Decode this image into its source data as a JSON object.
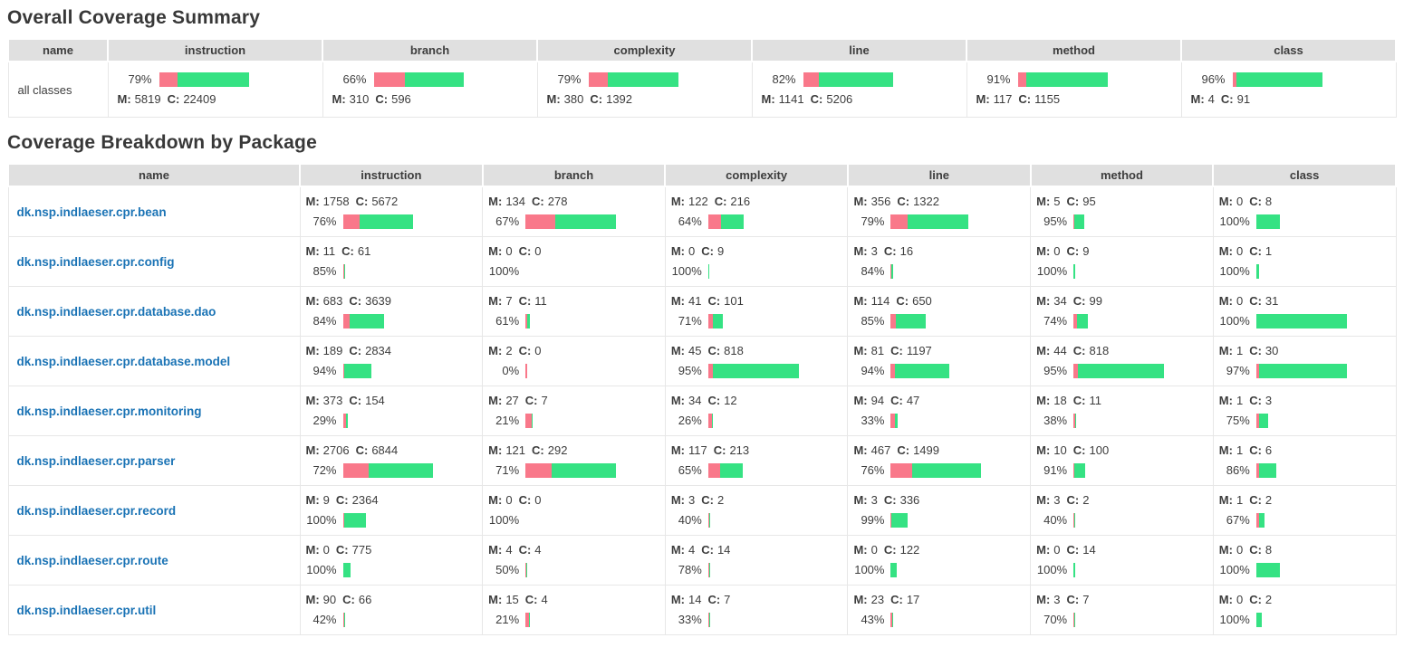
{
  "titles": {
    "summary": "Overall Coverage Summary",
    "breakdown": "Coverage Breakdown by Package"
  },
  "columns": [
    "name",
    "instruction",
    "branch",
    "complexity",
    "line",
    "method",
    "class"
  ],
  "metric_keys": [
    "instruction",
    "branch",
    "complexity",
    "line",
    "method",
    "class"
  ],
  "labels": {
    "missed": "M:",
    "covered": "C:"
  },
  "colors": {
    "missed_bar": "#f9788a",
    "covered_bar": "#35e283",
    "header_bg": "#e0e0e0",
    "link": "#1a73b5"
  },
  "summary": {
    "row_name": "all classes",
    "metrics": {
      "instruction": {
        "pct": "79%",
        "missed": 5819,
        "covered": 22409
      },
      "branch": {
        "pct": "66%",
        "missed": 310,
        "covered": 596
      },
      "complexity": {
        "pct": "79%",
        "missed": 380,
        "covered": 1392
      },
      "line": {
        "pct": "82%",
        "missed": 1141,
        "covered": 5206
      },
      "method": {
        "pct": "91%",
        "missed": 117,
        "covered": 1155
      },
      "class": {
        "pct": "96%",
        "missed": 4,
        "covered": 91
      }
    }
  },
  "packages": [
    {
      "name": "dk.nsp.indlaeser.cpr.bean",
      "metrics": {
        "instruction": {
          "pct": "76%",
          "missed": 1758,
          "covered": 5672
        },
        "branch": {
          "pct": "67%",
          "missed": 134,
          "covered": 278
        },
        "complexity": {
          "pct": "64%",
          "missed": 122,
          "covered": 216
        },
        "line": {
          "pct": "79%",
          "missed": 356,
          "covered": 1322
        },
        "method": {
          "pct": "95%",
          "missed": 5,
          "covered": 95
        },
        "class": {
          "pct": "100%",
          "missed": 0,
          "covered": 8
        }
      }
    },
    {
      "name": "dk.nsp.indlaeser.cpr.config",
      "metrics": {
        "instruction": {
          "pct": "85%",
          "missed": 11,
          "covered": 61
        },
        "branch": {
          "pct": "100%",
          "missed": 0,
          "covered": 0
        },
        "complexity": {
          "pct": "100%",
          "missed": 0,
          "covered": 9
        },
        "line": {
          "pct": "84%",
          "missed": 3,
          "covered": 16
        },
        "method": {
          "pct": "100%",
          "missed": 0,
          "covered": 9
        },
        "class": {
          "pct": "100%",
          "missed": 0,
          "covered": 1
        }
      }
    },
    {
      "name": "dk.nsp.indlaeser.cpr.database.dao",
      "metrics": {
        "instruction": {
          "pct": "84%",
          "missed": 683,
          "covered": 3639
        },
        "branch": {
          "pct": "61%",
          "missed": 7,
          "covered": 11
        },
        "complexity": {
          "pct": "71%",
          "missed": 41,
          "covered": 101
        },
        "line": {
          "pct": "85%",
          "missed": 114,
          "covered": 650
        },
        "method": {
          "pct": "74%",
          "missed": 34,
          "covered": 99
        },
        "class": {
          "pct": "100%",
          "missed": 0,
          "covered": 31
        }
      }
    },
    {
      "name": "dk.nsp.indlaeser.cpr.database.model",
      "metrics": {
        "instruction": {
          "pct": "94%",
          "missed": 189,
          "covered": 2834
        },
        "branch": {
          "pct": "0%",
          "missed": 2,
          "covered": 0
        },
        "complexity": {
          "pct": "95%",
          "missed": 45,
          "covered": 818
        },
        "line": {
          "pct": "94%",
          "missed": 81,
          "covered": 1197
        },
        "method": {
          "pct": "95%",
          "missed": 44,
          "covered": 818
        },
        "class": {
          "pct": "97%",
          "missed": 1,
          "covered": 30
        }
      }
    },
    {
      "name": "dk.nsp.indlaeser.cpr.monitoring",
      "metrics": {
        "instruction": {
          "pct": "29%",
          "missed": 373,
          "covered": 154
        },
        "branch": {
          "pct": "21%",
          "missed": 27,
          "covered": 7
        },
        "complexity": {
          "pct": "26%",
          "missed": 34,
          "covered": 12
        },
        "line": {
          "pct": "33%",
          "missed": 94,
          "covered": 47
        },
        "method": {
          "pct": "38%",
          "missed": 18,
          "covered": 11
        },
        "class": {
          "pct": "75%",
          "missed": 1,
          "covered": 3
        }
      }
    },
    {
      "name": "dk.nsp.indlaeser.cpr.parser",
      "metrics": {
        "instruction": {
          "pct": "72%",
          "missed": 2706,
          "covered": 6844
        },
        "branch": {
          "pct": "71%",
          "missed": 121,
          "covered": 292
        },
        "complexity": {
          "pct": "65%",
          "missed": 117,
          "covered": 213
        },
        "line": {
          "pct": "76%",
          "missed": 467,
          "covered": 1499
        },
        "method": {
          "pct": "91%",
          "missed": 10,
          "covered": 100
        },
        "class": {
          "pct": "86%",
          "missed": 1,
          "covered": 6
        }
      }
    },
    {
      "name": "dk.nsp.indlaeser.cpr.record",
      "metrics": {
        "instruction": {
          "pct": "100%",
          "missed": 9,
          "covered": 2364
        },
        "branch": {
          "pct": "100%",
          "missed": 0,
          "covered": 0
        },
        "complexity": {
          "pct": "40%",
          "missed": 3,
          "covered": 2
        },
        "line": {
          "pct": "99%",
          "missed": 3,
          "covered": 336
        },
        "method": {
          "pct": "40%",
          "missed": 3,
          "covered": 2
        },
        "class": {
          "pct": "67%",
          "missed": 1,
          "covered": 2
        }
      }
    },
    {
      "name": "dk.nsp.indlaeser.cpr.route",
      "metrics": {
        "instruction": {
          "pct": "100%",
          "missed": 0,
          "covered": 775
        },
        "branch": {
          "pct": "50%",
          "missed": 4,
          "covered": 4
        },
        "complexity": {
          "pct": "78%",
          "missed": 4,
          "covered": 14
        },
        "line": {
          "pct": "100%",
          "missed": 0,
          "covered": 122
        },
        "method": {
          "pct": "100%",
          "missed": 0,
          "covered": 14
        },
        "class": {
          "pct": "100%",
          "missed": 0,
          "covered": 8
        }
      }
    },
    {
      "name": "dk.nsp.indlaeser.cpr.util",
      "metrics": {
        "instruction": {
          "pct": "42%",
          "missed": 90,
          "covered": 66
        },
        "branch": {
          "pct": "21%",
          "missed": 15,
          "covered": 4
        },
        "complexity": {
          "pct": "33%",
          "missed": 14,
          "covered": 7
        },
        "line": {
          "pct": "43%",
          "missed": 23,
          "covered": 17
        },
        "method": {
          "pct": "70%",
          "missed": 3,
          "covered": 7
        },
        "class": {
          "pct": "100%",
          "missed": 0,
          "covered": 2
        }
      }
    }
  ]
}
